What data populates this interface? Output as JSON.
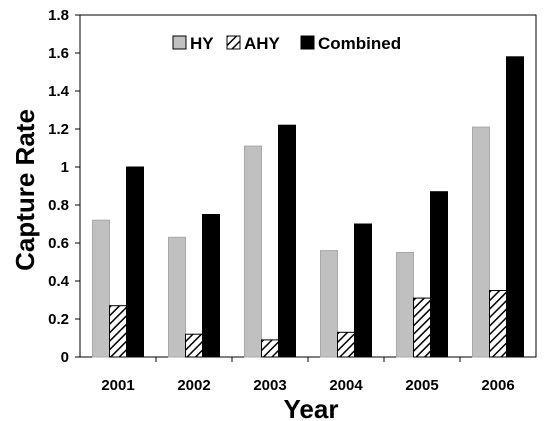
{
  "chart_data": {
    "type": "bar",
    "categories": [
      "2001",
      "2002",
      "2003",
      "2004",
      "2005",
      "2006"
    ],
    "series": [
      {
        "name": "HY",
        "values": [
          0.72,
          0.63,
          1.11,
          0.56,
          0.55,
          1.21
        ],
        "color": "#c0c0c0",
        "pattern": "solid"
      },
      {
        "name": "AHY",
        "values": [
          0.27,
          0.12,
          0.09,
          0.13,
          0.31,
          0.35
        ],
        "color": "#ffffff",
        "pattern": "diagonal-hatch"
      },
      {
        "name": "Combined",
        "values": [
          1.0,
          0.75,
          1.22,
          0.7,
          0.87,
          1.58
        ],
        "color": "#000000",
        "pattern": "solid"
      }
    ],
    "xlabel": "Year",
    "ylabel": "Capture Rate",
    "ylim": [
      0,
      1.8
    ],
    "yticks": [
      "0",
      "0.2",
      "0.4",
      "0.6",
      "0.8",
      "1",
      "1.2",
      "1.4",
      "1.6",
      "1.8"
    ],
    "grid": false,
    "legend_position": "top-center"
  }
}
